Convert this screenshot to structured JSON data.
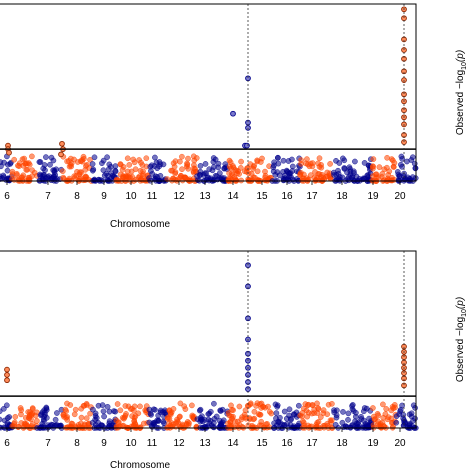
{
  "chart_data": [
    {
      "type": "scatter",
      "title": "",
      "xlabel": "Chromosome",
      "ylabel": "Observed  −log",
      "ylabel_sub": "10",
      "ylabel_tail": "(p)",
      "chromosomes": [
        "6",
        "7",
        "8",
        "9",
        "10",
        "11",
        "12",
        "13",
        "14",
        "15",
        "16",
        "17",
        "18",
        "19",
        "20"
      ],
      "colors": {
        "odd": "#ff4500",
        "even": "#00008b"
      },
      "threshold_line": 0.18,
      "grid": false,
      "hits": [
        {
          "chromosome": "6",
          "values": [
            0.2,
            0.18,
            0.16
          ]
        },
        {
          "chromosome": "7",
          "values": [
            0.21,
            0.18,
            0.15
          ]
        },
        {
          "chromosome": "13",
          "values": [
            0.38
          ]
        },
        {
          "chromosome": "14",
          "values": [
            0.2
          ]
        },
        {
          "chromosome": "15",
          "values": [
            0.58,
            0.33,
            0.3,
            0.2
          ]
        },
        {
          "chromosome": "20",
          "values": [
            0.97,
            0.92,
            0.8,
            0.74,
            0.69,
            0.62,
            0.57,
            0.49,
            0.45,
            0.4,
            0.36,
            0.32,
            0.26,
            0.22
          ]
        }
      ]
    },
    {
      "type": "scatter",
      "title": "",
      "xlabel": "Chromosome",
      "ylabel": "Observed  −log",
      "ylabel_sub": "10",
      "ylabel_tail": "(p)",
      "chromosomes": [
        "6",
        "7",
        "8",
        "9",
        "10",
        "11",
        "12",
        "13",
        "14",
        "15",
        "16",
        "17",
        "18",
        "19",
        "20"
      ],
      "colors": {
        "odd": "#ff4500",
        "even": "#00008b"
      },
      "threshold_line": 0.18,
      "grid": false,
      "hits": [
        {
          "chromosome": "6",
          "values": [
            0.33,
            0.3,
            0.27
          ]
        },
        {
          "chromosome": "15",
          "values": [
            0.92,
            0.8,
            0.62,
            0.5,
            0.42,
            0.38,
            0.34,
            0.3,
            0.26,
            0.22
          ]
        },
        {
          "chromosome": "20",
          "values": [
            0.46,
            0.43,
            0.4,
            0.37,
            0.34,
            0.31,
            0.28,
            0.24
          ]
        }
      ]
    }
  ]
}
